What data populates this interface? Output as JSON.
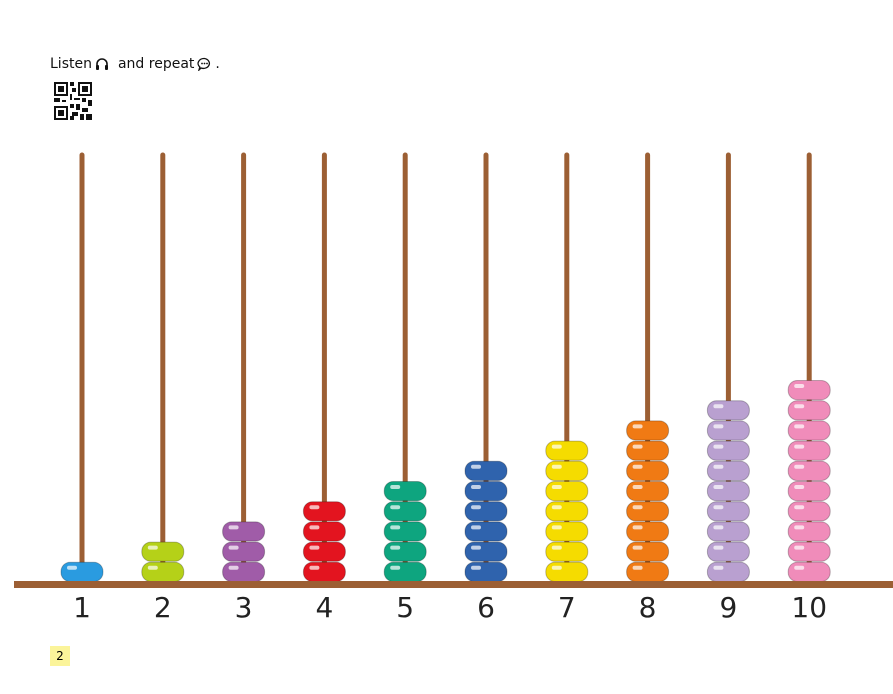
{
  "header": {
    "listen": "Listen",
    "repeat": "and repeat",
    "end": "."
  },
  "rods": [
    {
      "label": "1",
      "beads": 1,
      "color": "#2a9be0"
    },
    {
      "label": "2",
      "beads": 2,
      "color": "#b5d118"
    },
    {
      "label": "3",
      "beads": 3,
      "color": "#a05ca8"
    },
    {
      "label": "4",
      "beads": 4,
      "color": "#e3141f"
    },
    {
      "label": "5",
      "beads": 5,
      "color": "#0ea57f"
    },
    {
      "label": "6",
      "beads": 6,
      "color": "#2f63ad"
    },
    {
      "label": "7",
      "beads": 7,
      "color": "#f5dc00"
    },
    {
      "label": "8",
      "beads": 8,
      "color": "#f07a14"
    },
    {
      "label": "9",
      "beads": 9,
      "color": "#b9a0d0"
    },
    {
      "label": "10",
      "beads": 10,
      "color": "#f08cba"
    }
  ],
  "page_number": "2"
}
